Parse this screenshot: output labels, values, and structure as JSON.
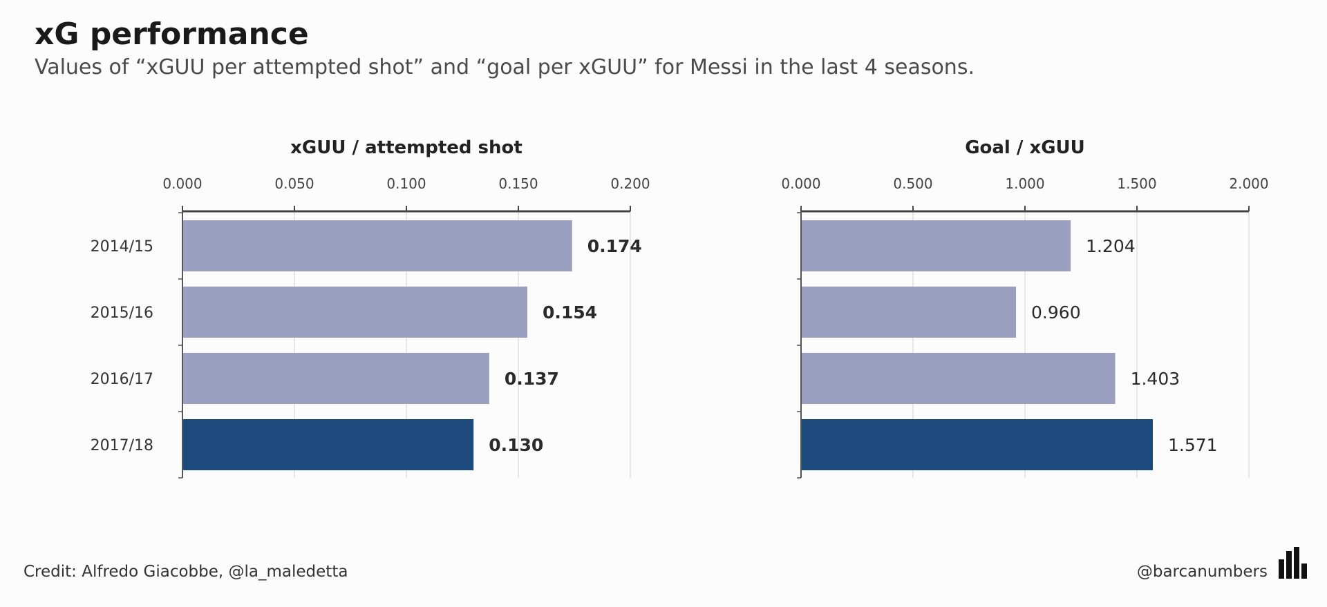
{
  "title": "xG performance",
  "subtitle": "Values of “xGUU per attempted shot” and “goal per xGUU” for Messi in the last 4 seasons.",
  "footer": {
    "credit": "Credit: Alfredo Giacobbe, @la_maledetta",
    "handle": "@barcanumbers",
    "logo_icon": "bar-chart-logo-icon"
  },
  "colors": {
    "bar_default": "#9b9fbf",
    "bar_highlight": "#1c4a7c",
    "axis": "#444444",
    "grid": "#d9d9d9",
    "text": "#333333"
  },
  "chart_data": [
    {
      "type": "bar",
      "orientation": "horizontal",
      "title": "xGUU / attempted shot",
      "categories": [
        "2014/15",
        "2015/16",
        "2016/17",
        "2017/18"
      ],
      "values": [
        0.174,
        0.154,
        0.137,
        0.13
      ],
      "value_labels": [
        "0.174",
        "0.154",
        "0.137",
        "0.130"
      ],
      "xlim": [
        0,
        0.2
      ],
      "ticks": [
        0,
        0.05,
        0.1,
        0.15,
        0.2
      ],
      "tick_labels": [
        "0.000",
        "0.050",
        "0.100",
        "0.150",
        "0.200"
      ],
      "highlight_index": 3,
      "grid": true,
      "axis_position": "top"
    },
    {
      "type": "bar",
      "orientation": "horizontal",
      "title": "Goal / xGUU",
      "categories": [
        "2014/15",
        "2015/16",
        "2016/17",
        "2017/18"
      ],
      "values": [
        1.204,
        0.96,
        1.403,
        1.571
      ],
      "value_labels": [
        "1.204",
        "0.960",
        "1.403",
        "1.571"
      ],
      "xlim": [
        0,
        2
      ],
      "ticks": [
        0,
        0.5,
        1,
        1.5,
        2
      ],
      "tick_labels": [
        "0.000",
        "0.500",
        "1.000",
        "1.500",
        "2.000"
      ],
      "highlight_index": 3,
      "grid": true,
      "axis_position": "top"
    }
  ]
}
